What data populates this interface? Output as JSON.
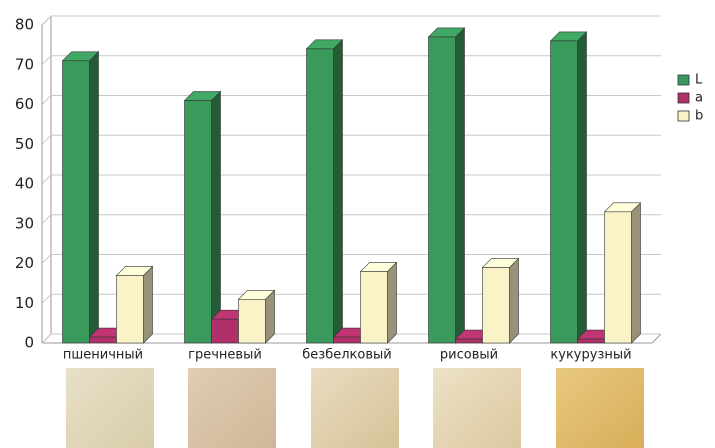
{
  "chart_data": {
    "type": "bar3d",
    "categories": [
      "пшеничный",
      "гречневый",
      "безбелковый",
      "рисовый",
      "кукурузный"
    ],
    "series": [
      {
        "name": "L",
        "color": "#3a9a5c",
        "values": [
          71,
          61,
          74,
          77,
          76
        ]
      },
      {
        "name": "a",
        "color": "#b0306a",
        "values": [
          1.5,
          6,
          1.5,
          1,
          1
        ]
      },
      {
        "name": "b",
        "color": "#fbf3c8",
        "values": [
          17,
          11,
          18,
          19,
          33
        ]
      }
    ],
    "ylim": [
      0,
      80
    ],
    "yticks": [
      0,
      10,
      20,
      30,
      40,
      50,
      60,
      70,
      80
    ],
    "grid": true,
    "legend": "right"
  }
}
